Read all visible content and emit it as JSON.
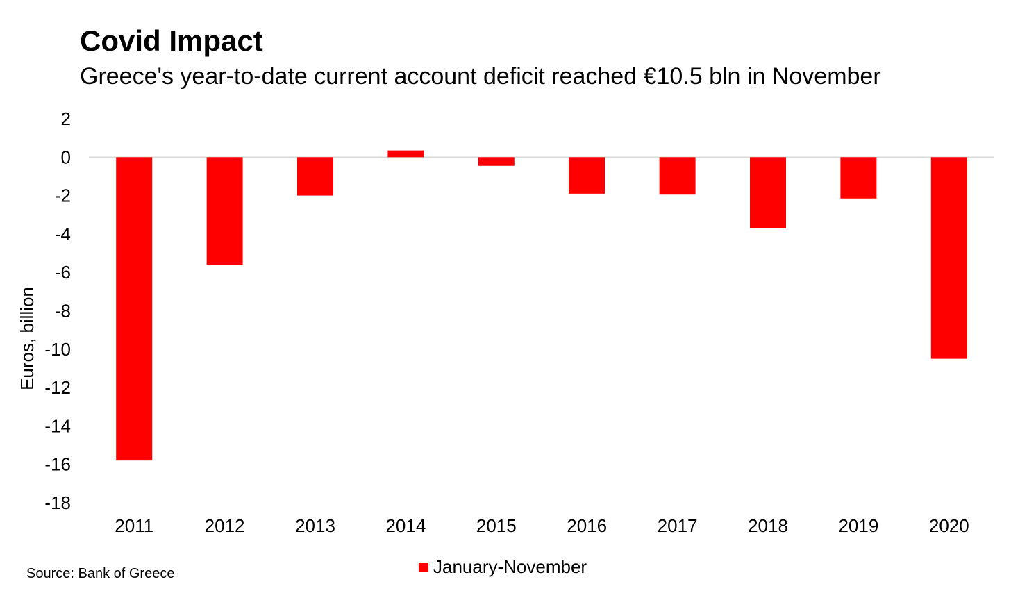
{
  "header": {
    "title": "Covid Impact",
    "subtitle": "Greece's year-to-date current account deficit reached €10.5 bln in November"
  },
  "footer": {
    "source": "Source: Bank of Greece"
  },
  "colors": {
    "bar": "#ff0000",
    "zero_line": "#d9d9d9"
  },
  "chart_data": {
    "type": "bar",
    "categories": [
      "2011",
      "2012",
      "2013",
      "2014",
      "2015",
      "2016",
      "2017",
      "2018",
      "2019",
      "2020"
    ],
    "series": [
      {
        "name": "January-November",
        "values": [
          -15.8,
          -5.6,
          -2.0,
          0.35,
          -0.45,
          -1.9,
          -1.95,
          -3.7,
          -2.15,
          -10.5
        ]
      }
    ],
    "title": "",
    "xlabel": "",
    "ylabel": "Euros, billion",
    "ylim": [
      -18,
      2
    ],
    "yticks": [
      2,
      0,
      -2,
      -4,
      -6,
      -8,
      -10,
      -12,
      -14,
      -16,
      -18
    ],
    "grid": false,
    "legend_position": "bottom"
  }
}
